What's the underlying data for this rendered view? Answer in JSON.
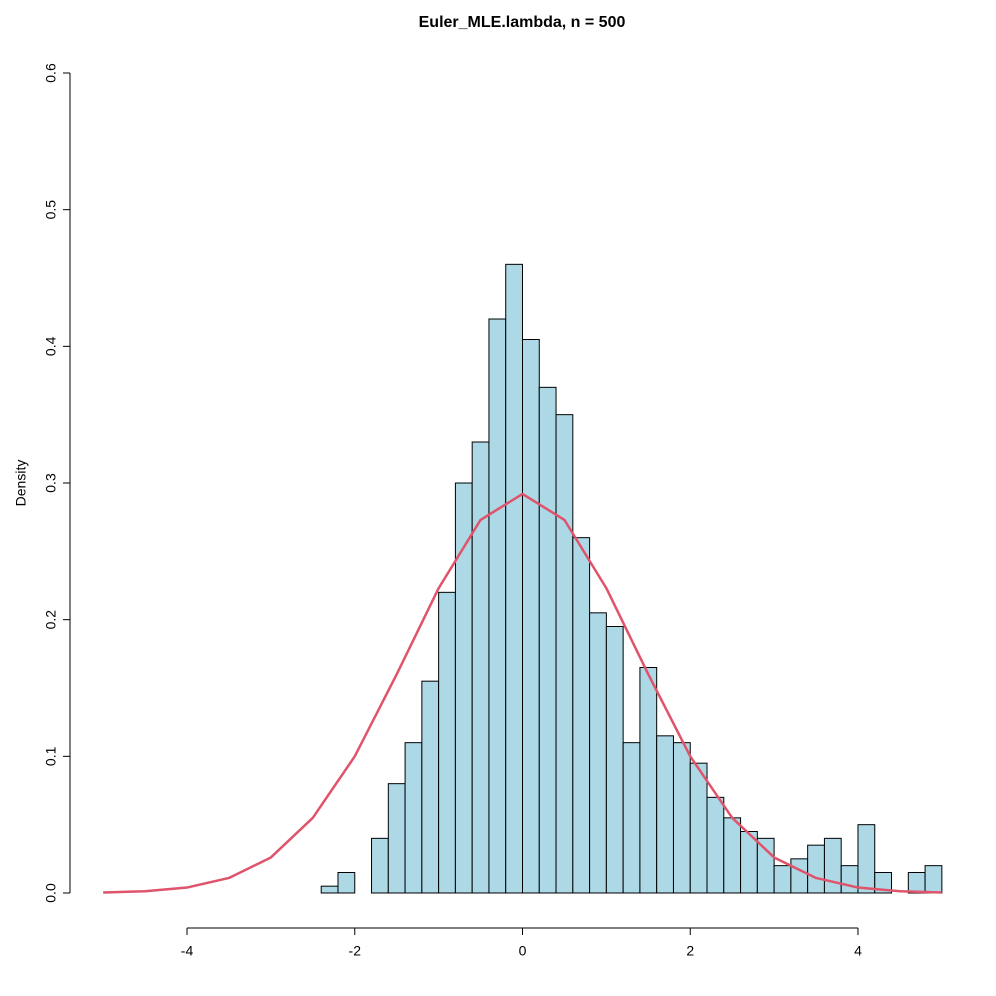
{
  "chart_data": {
    "type": "histogram",
    "title": "Euler_MLE.lambda, n = 500",
    "y_label": "Density",
    "bins": [
      -2.4,
      -2.2,
      -2.0,
      -1.8,
      -1.6,
      -1.4,
      -1.2,
      -1.0,
      -0.8,
      -0.6,
      -0.4,
      -0.2,
      0,
      0.2,
      0.4,
      0.6,
      0.8,
      1.0,
      1.2,
      1.4,
      1.6,
      1.8,
      2.0,
      2.2,
      2.4,
      2.6,
      2.8,
      3.0,
      3.2,
      3.4,
      3.6,
      3.8,
      4.0,
      4.2,
      4.4,
      4.6,
      4.8,
      5.0
    ],
    "values": [
      0.005,
      0.015,
      0,
      0.04,
      0.08,
      0.11,
      0.155,
      0.22,
      0.3,
      0.33,
      0.42,
      0.46,
      0.405,
      0.37,
      0.35,
      0.26,
      0.205,
      0.195,
      0.11,
      0.165,
      0.115,
      0.11,
      0.095,
      0.07,
      0.055,
      0.045,
      0.04,
      0.02,
      0.025,
      0.035,
      0.04,
      0.02,
      0.05,
      0.015,
      0,
      0.015,
      0.02
    ],
    "color": "#add8e6",
    "curve": {
      "color": "#df536b",
      "x": [
        -5,
        -4.5,
        -4,
        -3.5,
        -3,
        -2.5,
        -2,
        -1.5,
        -1,
        -0.5,
        0,
        0.5,
        1,
        1.5,
        2,
        2.5,
        3,
        3.5,
        4,
        4.5,
        5
      ],
      "y": [
        0.0004,
        0.0013,
        0.004,
        0.011,
        0.026,
        0.055,
        0.1,
        0.16,
        0.223,
        0.273,
        0.292,
        0.273,
        0.223,
        0.16,
        0.1,
        0.055,
        0.026,
        0.011,
        0.004,
        0.0013,
        0.0004
      ]
    },
    "xlim": [
      -5.4,
      5.4
    ],
    "xticks": [
      -4,
      -2,
      0,
      2,
      4
    ],
    "ylim": [
      0,
      0.6
    ],
    "yticks": [
      {
        "value": 0,
        "label": "0.0"
      },
      0.1,
      0.2,
      0.3,
      0.4,
      0.5,
      0.6
    ]
  }
}
